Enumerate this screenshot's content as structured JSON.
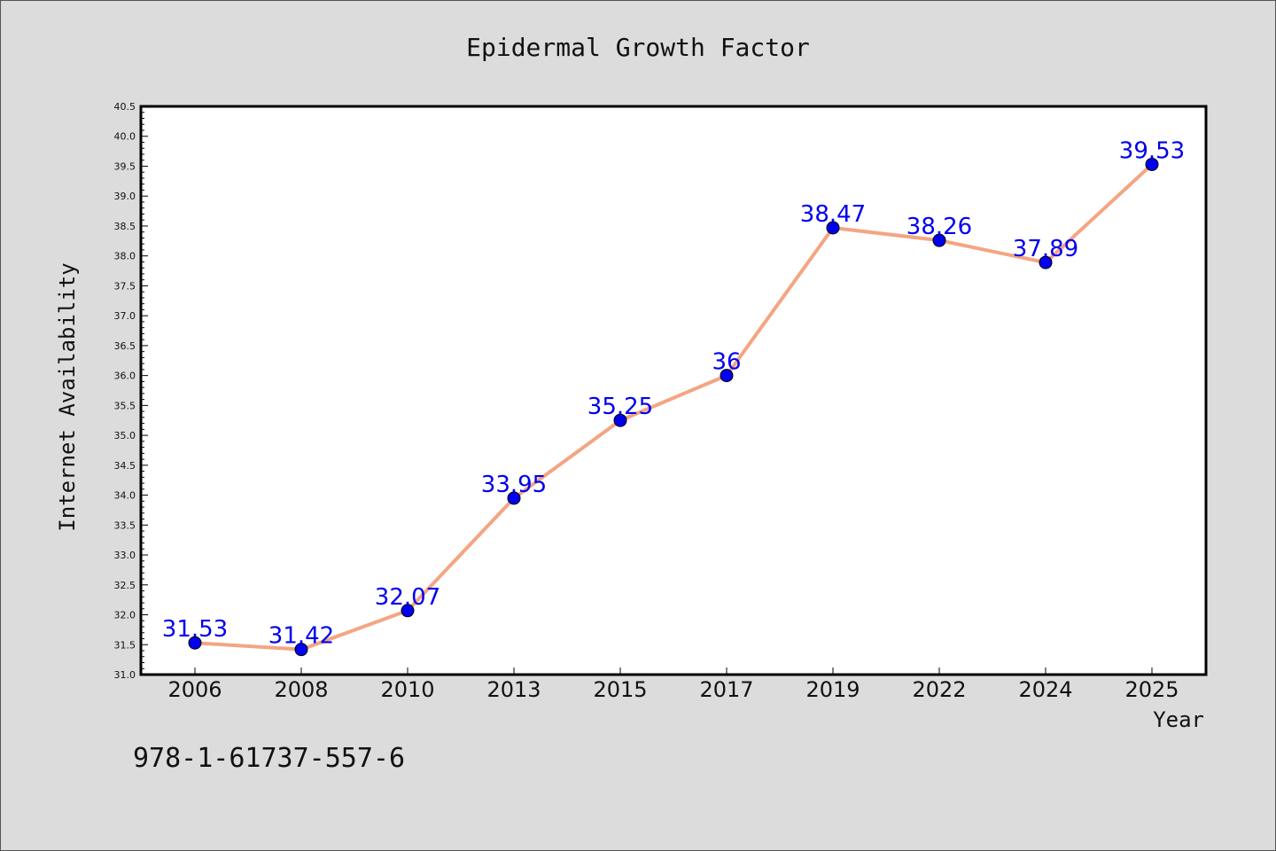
{
  "chart_data": {
    "type": "line",
    "title": "Epidermal Growth Factor",
    "xlabel": "Year",
    "ylabel": "Internet Availability",
    "categories": [
      "2006",
      "2008",
      "2010",
      "2013",
      "2015",
      "2017",
      "2019",
      "2022",
      "2024",
      "2025"
    ],
    "series": [
      {
        "values": [
          31.53,
          31.42,
          32.07,
          33.95,
          35.25,
          36,
          38.47,
          38.26,
          37.89,
          39.53
        ],
        "labels": [
          "31.53",
          "31.42",
          "32.07",
          "33.95",
          "35.25",
          "36",
          "38.47",
          "38.26",
          "37.89",
          "39.53"
        ],
        "line_color": "#f4a582",
        "marker_color": "#0000ee"
      }
    ],
    "ylim": [
      31.0,
      40.5
    ],
    "yticks": [
      "31.0",
      "31.5",
      "32.0",
      "32.5",
      "33.0",
      "33.5",
      "34.0",
      "34.5",
      "35.0",
      "35.5",
      "36.0",
      "36.5",
      "37.0",
      "37.5",
      "38.0",
      "38.5",
      "39.0",
      "39.5",
      "40.0",
      "40.5"
    ],
    "grid": false,
    "legend": "none"
  },
  "footnote": "978-1-61737-557-6",
  "colors": {
    "background": "#dcdcdc",
    "plot_background": "#ffffff",
    "line": "#f4a582",
    "marker": "#0000ee",
    "data_label": "#0000ee"
  }
}
